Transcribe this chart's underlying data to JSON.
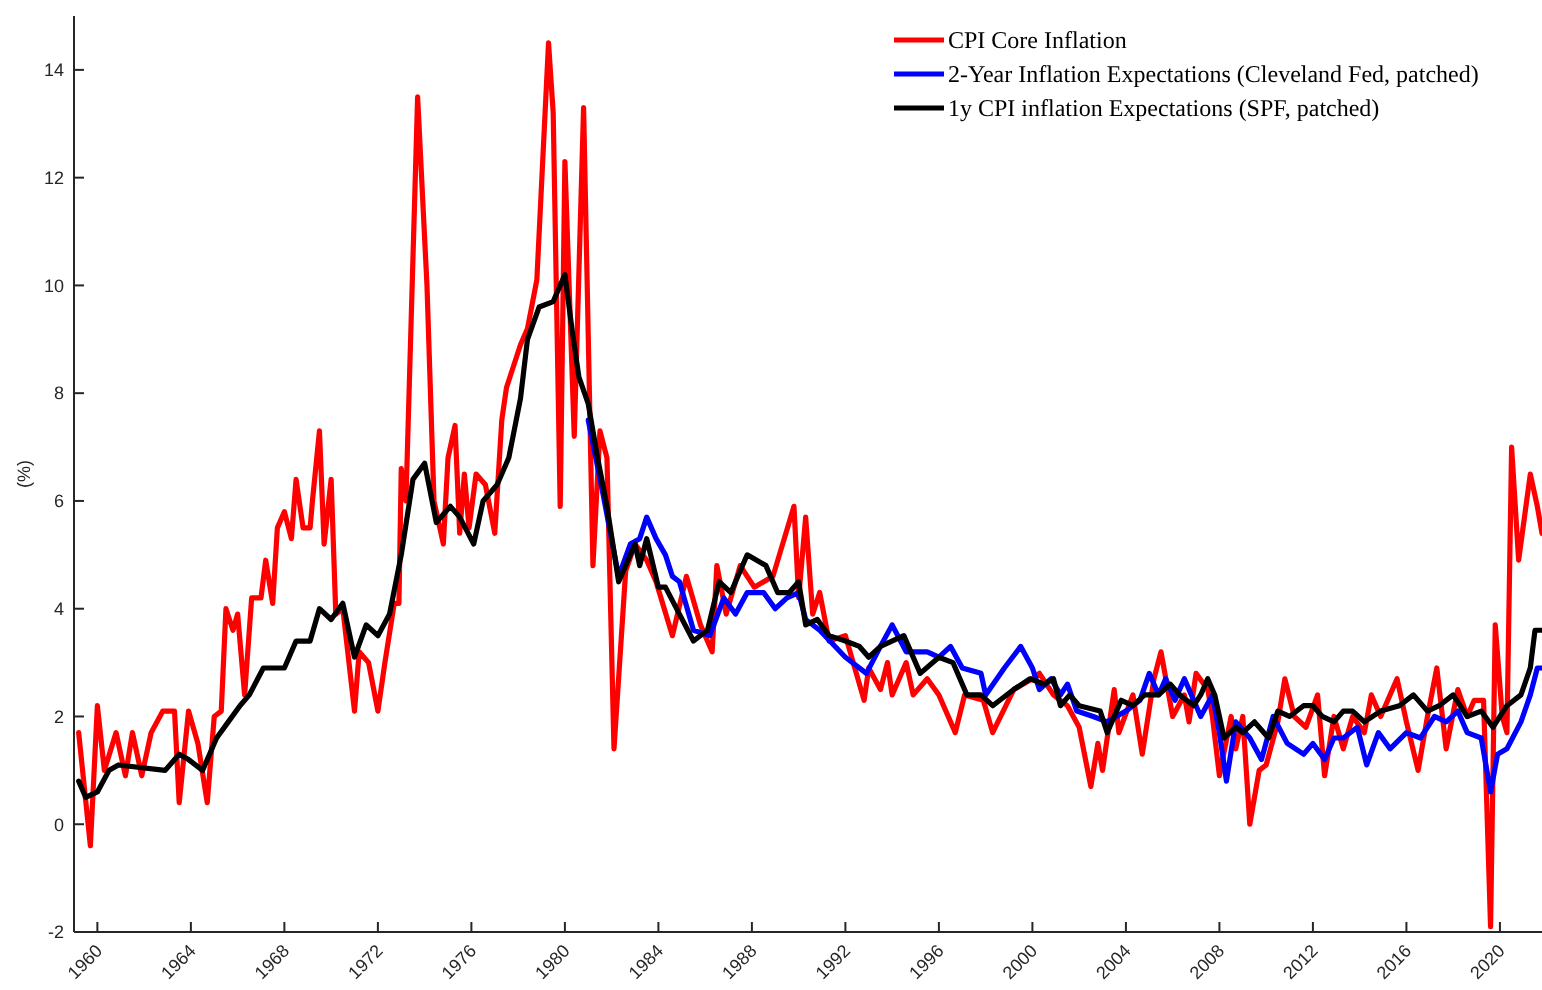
{
  "chart_data": {
    "type": "line",
    "ylabel": "(%)",
    "xlim": [
      1959,
      2021.8
    ],
    "ylim": [
      -2,
      15
    ],
    "xticks": [
      1960,
      1964,
      1968,
      1972,
      1976,
      1980,
      1984,
      1988,
      1992,
      1996,
      2000,
      2004,
      2008,
      2012,
      2016,
      2020
    ],
    "yticks": [
      -2,
      0,
      2,
      4,
      6,
      8,
      10,
      12,
      14
    ],
    "grid": false,
    "legend": "top right",
    "marker": "none",
    "line_style": "solid",
    "series": [
      {
        "name": "CPI Core Inflation",
        "color": "#ff0000",
        "x": [
          1959.2,
          1959.7,
          1960,
          1960.3,
          1960.8,
          1961.2,
          1961.5,
          1961.9,
          1962.3,
          1962.8,
          1963.3,
          1963.5,
          1963.9,
          1964.3,
          1964.7,
          1965,
          1965.3,
          1965.5,
          1965.8,
          1966,
          1966.3,
          1966.6,
          1967,
          1967.2,
          1967.5,
          1967.7,
          1968,
          1968.3,
          1968.5,
          1968.8,
          1969.1,
          1969.2,
          1969.5,
          1969.7,
          1970,
          1970.2,
          1970.5,
          1971,
          1971.2,
          1971.6,
          1972,
          1972.3,
          1972.7,
          1972.9,
          1973,
          1973.2,
          1973.7,
          1974.1,
          1974.4,
          1974.8,
          1975,
          1975.3,
          1975.5,
          1975.7,
          1975.9,
          1976.2,
          1976.6,
          1977,
          1977.3,
          1977.5,
          1978.1,
          1978.4,
          1978.8,
          1979.3,
          1979.5,
          1979.8,
          1980,
          1980.4,
          1980.8,
          1981.2,
          1981.5,
          1981.8,
          1982.1,
          1982.6,
          1983,
          1983.5,
          1983.9,
          1984.6,
          1985.2,
          1985.8,
          1986.3,
          1986.5,
          1986.9,
          1987.5,
          1988.1,
          1988.9,
          1989.8,
          1990,
          1990.3,
          1990.6,
          1990.9,
          1991.3,
          1992,
          1992.8,
          1993,
          1993.5,
          1993.8,
          1994,
          1994.6,
          1994.9,
          1995.5,
          1996,
          1996.7,
          1997.1,
          1997.9,
          1998.3,
          1999.2,
          2000,
          2000.3,
          2000.9,
          2001.5,
          2002,
          2002.5,
          2002.8,
          2003,
          2003.5,
          2003.7,
          2004.3,
          2004.7,
          2005.2,
          2005.5,
          2006,
          2006.5,
          2006.7,
          2007,
          2007.5,
          2007.7,
          2008,
          2008.5,
          2008.7,
          2009,
          2009.3,
          2009.7,
          2010,
          2010.5,
          2010.8,
          2011.2,
          2011.7,
          2012.2,
          2012.5,
          2012.9,
          2013.3,
          2013.7,
          2014.2,
          2014.5,
          2014.9,
          2015.6,
          2016,
          2016.5,
          2016.9,
          2017.3,
          2017.7,
          2018.2,
          2018.6,
          2018.9,
          2019.3,
          2019.6,
          2019.8,
          2020.1,
          2020.3,
          2020.5,
          2020.8,
          2021.3,
          2021.6,
          2021.8
        ],
        "values": [
          1.7,
          -0.4,
          2.2,
          1,
          1.7,
          0.9,
          1.7,
          0.9,
          1.7,
          2.1,
          2.1,
          0.4,
          2.1,
          1.5,
          0.4,
          2,
          2.1,
          4,
          3.6,
          3.9,
          2.4,
          4.2,
          4.2,
          4.9,
          4.1,
          5.5,
          5.8,
          5.3,
          6.4,
          5.5,
          5.5,
          6,
          7.3,
          5.2,
          6.4,
          3.9,
          4,
          2.1,
          3.2,
          3,
          2.1,
          3,
          4.1,
          4.1,
          6.6,
          6,
          13.5,
          10,
          6,
          5.2,
          6.8,
          7.4,
          5.4,
          6.5,
          5.5,
          6.5,
          6.3,
          5.4,
          7.5,
          8.1,
          8.9,
          9.2,
          10.1,
          14.5,
          13.2,
          5.9,
          12.3,
          7.2,
          13.3,
          4.8,
          7.3,
          6.8,
          1.4,
          4.7,
          5.2,
          4.9,
          4.5,
          3.5,
          4.6,
          3.7,
          3.2,
          4.8,
          3.9,
          4.8,
          4.4,
          4.6,
          5.9,
          4.2,
          5.7,
          3.9,
          4.3,
          3.4,
          3.5,
          2.3,
          2.9,
          2.5,
          3,
          2.4,
          3,
          2.4,
          2.7,
          2.4,
          1.7,
          2.4,
          2.3,
          1.7,
          2.5,
          2.7,
          2.8,
          2.4,
          2.2,
          1.8,
          0.7,
          1.5,
          1,
          2.5,
          1.7,
          2.4,
          1.3,
          2.7,
          3.2,
          2,
          2.4,
          1.9,
          2.8,
          2.5,
          2,
          0.9,
          2,
          1.4,
          2,
          0,
          1,
          1.1,
          1.9,
          2.7,
          2,
          1.8,
          2.4,
          0.9,
          2,
          1.4,
          2,
          1.7,
          2.4,
          2,
          2.7,
          1.9,
          1,
          2,
          2.9,
          1.4,
          2.5,
          2,
          2.3,
          2.3,
          -1.9,
          3.7,
          2,
          1.7,
          7,
          4.9,
          6.5,
          5.9,
          5.4
        ]
      },
      {
        "name": "2-Year Inflation Expectations (Cleveland Fed, patched)",
        "color": "#0000ff",
        "x": [
          1981,
          1981.6,
          1982.3,
          1982.8,
          1983.2,
          1983.5,
          1983.9,
          1984.3,
          1984.6,
          1984.9,
          1985.5,
          1986.2,
          1986.8,
          1987.3,
          1987.8,
          1988.5,
          1989,
          1989.5,
          1990,
          1990.3,
          1990.9,
          1992,
          1992.9,
          1993.5,
          1994,
          1994.6,
          1995.5,
          1996,
          1996.5,
          1997,
          1997.8,
          1998,
          1998.8,
          1999.5,
          2000,
          2000.3,
          2000.8,
          2001.2,
          2001.5,
          2001.9,
          2002.6,
          2003.2,
          2004,
          2004.6,
          2005,
          2005.4,
          2005.7,
          2006.1,
          2006.5,
          2007.2,
          2007.7,
          2008,
          2008.3,
          2008.7,
          2009.3,
          2009.8,
          2010.3,
          2010.9,
          2011.6,
          2012,
          2012.5,
          2012.9,
          2013.3,
          2013.9,
          2014.3,
          2014.8,
          2015.3,
          2016,
          2016.6,
          2017.2,
          2017.7,
          2018.2,
          2018.6,
          2019.2,
          2019.6,
          2019.9,
          2020.3,
          2020.9,
          2021.3,
          2021.6,
          2021.8
        ],
        "values": [
          7.5,
          6.2,
          4.6,
          5.2,
          5.3,
          5.7,
          5.3,
          5,
          4.6,
          4.5,
          3.6,
          3.5,
          4.2,
          3.9,
          4.3,
          4.3,
          4,
          4.2,
          4.3,
          3.8,
          3.6,
          3.1,
          2.8,
          3.3,
          3.7,
          3.2,
          3.2,
          3.1,
          3.3,
          2.9,
          2.8,
          2.4,
          2.9,
          3.3,
          2.9,
          2.5,
          2.7,
          2.4,
          2.6,
          2.1,
          2,
          1.9,
          2.1,
          2.3,
          2.8,
          2.4,
          2.7,
          2.3,
          2.7,
          2,
          2.4,
          1.7,
          0.8,
          1.9,
          1.6,
          1.2,
          2,
          1.5,
          1.3,
          1.5,
          1.2,
          1.6,
          1.6,
          1.8,
          1.1,
          1.7,
          1.4,
          1.7,
          1.6,
          2,
          1.9,
          2.1,
          1.7,
          1.6,
          0.6,
          1.3,
          1.4,
          1.9,
          2.4,
          2.9,
          2.9
        ]
      },
      {
        "name": "1y CPI inflation Expectations (SPF, patched)",
        "color": "#000000",
        "x": [
          1959.2,
          1959.5,
          1960,
          1960.5,
          1960.9,
          1962.9,
          1963.5,
          1963.9,
          1964.5,
          1965.1,
          1965.6,
          1966.1,
          1966.5,
          1967.1,
          1967.5,
          1968,
          1968.5,
          1969.1,
          1969.5,
          1970,
          1970.5,
          1971,
          1971.5,
          1972,
          1972.5,
          1973,
          1973.5,
          1974,
          1974.5,
          1975.1,
          1975.5,
          1976.1,
          1976.5,
          1977.1,
          1977.6,
          1978.1,
          1978.4,
          1978.9,
          1979.5,
          1980,
          1980.3,
          1980.6,
          1981,
          1981.4,
          1981.8,
          1982.3,
          1982.6,
          1983,
          1983.2,
          1983.5,
          1984,
          1984.3,
          1984.9,
          1985.5,
          1986.1,
          1986.6,
          1987.1,
          1987.8,
          1988.6,
          1989.1,
          1989.6,
          1990,
          1990.3,
          1990.8,
          1991.3,
          1992,
          1992.6,
          1993,
          1993.5,
          1994.5,
          1995.2,
          1996,
          1996.6,
          1997.2,
          1997.8,
          1998.3,
          1999.2,
          1999.9,
          2000.5,
          2000.9,
          2001.2,
          2001.6,
          2002,
          2002.9,
          2003.2,
          2003.8,
          2004.3,
          2004.8,
          2005.4,
          2005.9,
          2006.3,
          2006.9,
          2007.2,
          2007.5,
          2007.8,
          2008.2,
          2008.7,
          2009,
          2009.5,
          2010.1,
          2010.5,
          2011,
          2011.6,
          2012,
          2012.4,
          2012.9,
          2013.3,
          2013.7,
          2014.2,
          2014.9,
          2015.7,
          2016.3,
          2016.9,
          2017.4,
          2018,
          2018.6,
          2019.2,
          2019.7,
          2020.3,
          2020.9,
          2021.3,
          2021.5,
          2021.8
        ],
        "values": [
          0.8,
          0.5,
          0.6,
          1,
          1.1,
          1,
          1.3,
          1.2,
          1,
          1.6,
          1.9,
          2.2,
          2.4,
          2.9,
          2.9,
          2.9,
          3.4,
          3.4,
          4,
          3.8,
          4.1,
          3.1,
          3.7,
          3.5,
          3.9,
          5,
          6.4,
          6.7,
          5.6,
          5.9,
          5.7,
          5.2,
          6,
          6.3,
          6.8,
          7.9,
          9,
          9.6,
          9.7,
          10.2,
          9.2,
          8.3,
          7.8,
          6.8,
          5.9,
          4.5,
          4.8,
          5.2,
          4.8,
          5.3,
          4.4,
          4.4,
          3.9,
          3.4,
          3.6,
          4.5,
          4.3,
          5,
          4.8,
          4.3,
          4.3,
          4.5,
          3.7,
          3.8,
          3.5,
          3.4,
          3.3,
          3.1,
          3.3,
          3.5,
          2.8,
          3.1,
          3,
          2.4,
          2.4,
          2.2,
          2.5,
          2.7,
          2.6,
          2.7,
          2.2,
          2.4,
          2.2,
          2.1,
          1.7,
          2.3,
          2.2,
          2.4,
          2.4,
          2.6,
          2.4,
          2.2,
          2.4,
          2.7,
          2.4,
          1.6,
          1.8,
          1.7,
          1.9,
          1.6,
          2.1,
          2,
          2.2,
          2.2,
          2,
          1.9,
          2.1,
          2.1,
          1.9,
          2.1,
          2.2,
          2.4,
          2.1,
          2.2,
          2.4,
          2,
          2.1,
          1.8,
          2.2,
          2.4,
          2.9,
          3.6,
          3.6
        ]
      }
    ]
  }
}
